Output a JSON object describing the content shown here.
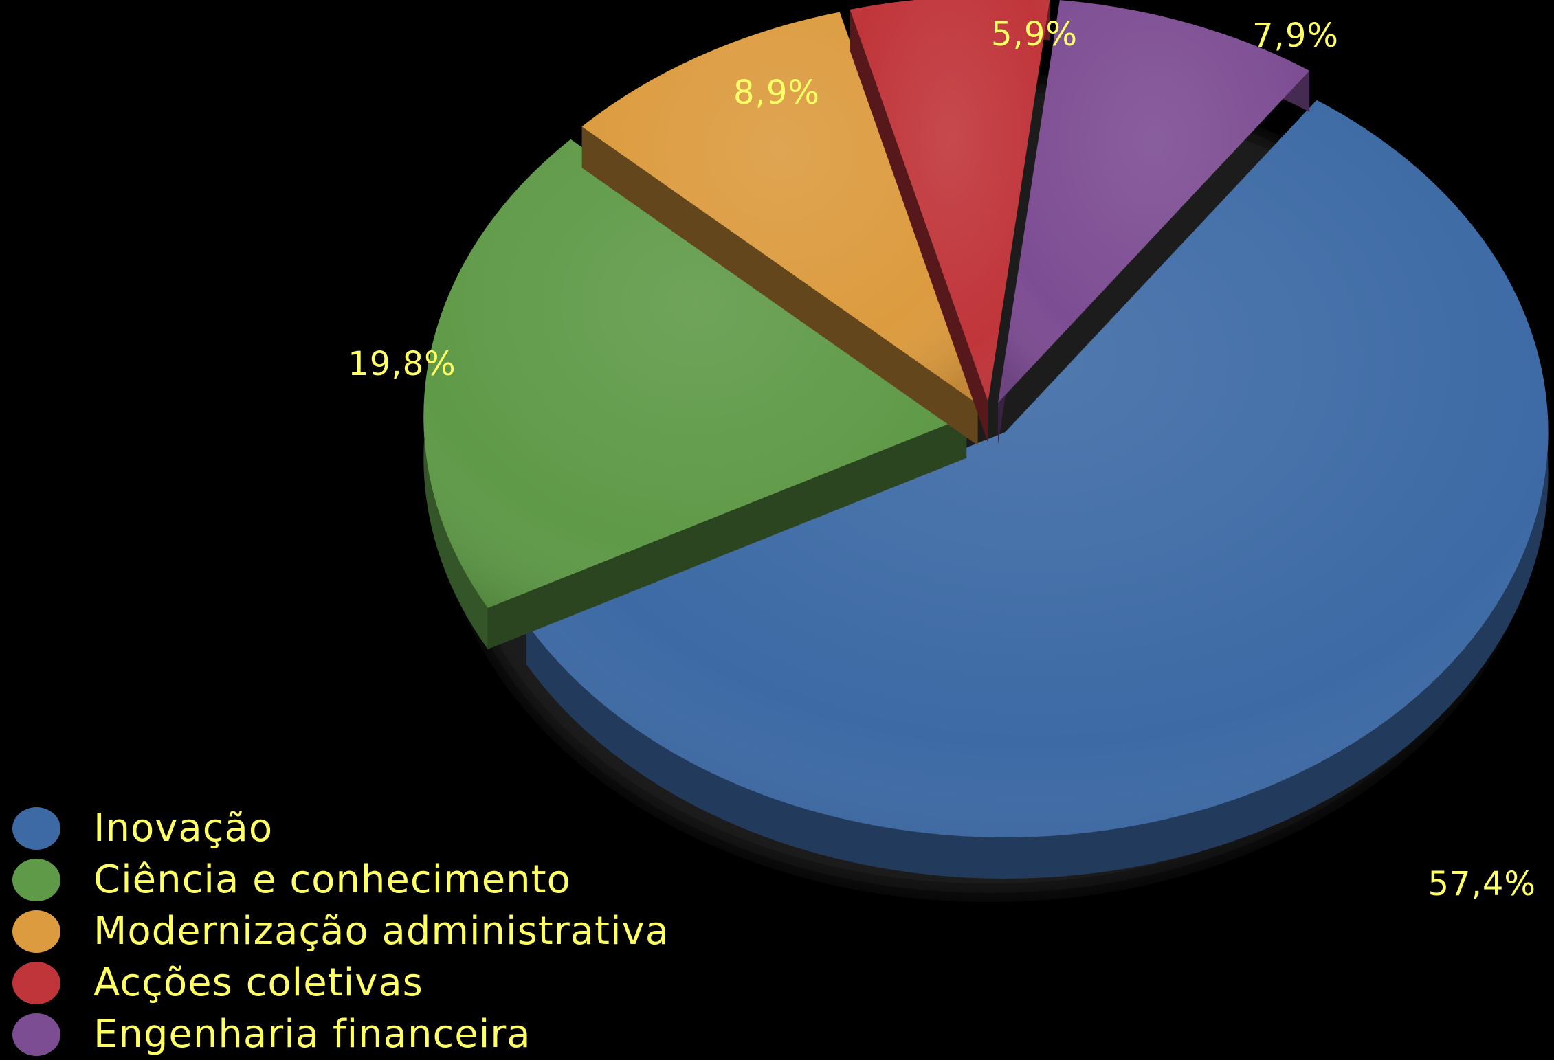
{
  "colors": {
    "background": "#000000",
    "label_text": "#ffff66"
  },
  "chart_data": {
    "type": "pie",
    "style": "3d-exploded",
    "legend_placement": "bottom-left",
    "slices": [
      {
        "name": "Inovação",
        "value": 57.4,
        "label": "57,4%",
        "color": "#3d6aa5"
      },
      {
        "name": "Ciência e conhecimento",
        "value": 19.8,
        "label": "19,8%",
        "color": "#5f9a48"
      },
      {
        "name": "Modernização administrativa",
        "value": 8.9,
        "label": "8,9%",
        "color": "#dc9b3f"
      },
      {
        "name": "Acções coletivas",
        "value": 5.9,
        "label": "5,9%",
        "color": "#c0353a"
      },
      {
        "name": "Engenharia financeira",
        "value": 7.9,
        "label": "7,9%",
        "color": "#7d4d93"
      }
    ]
  }
}
